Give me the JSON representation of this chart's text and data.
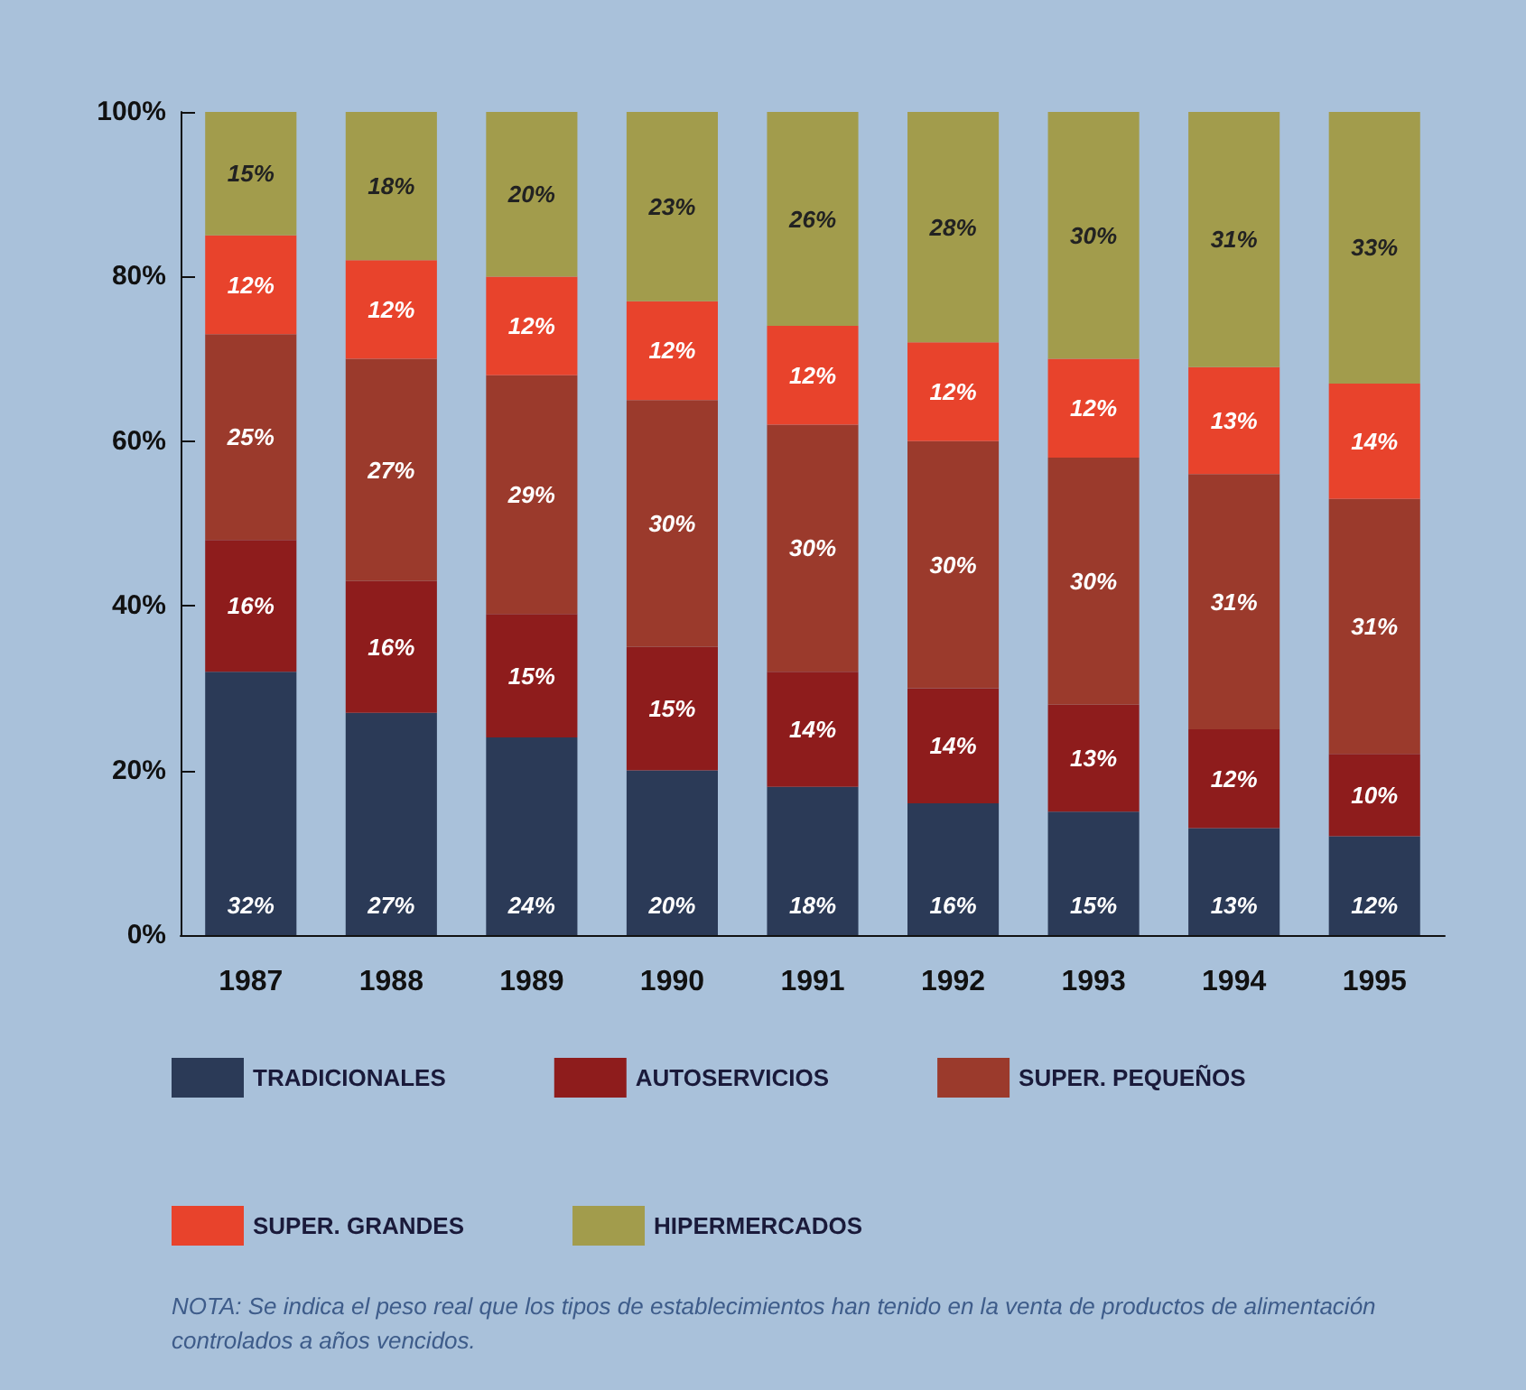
{
  "chart_data": {
    "type": "bar",
    "stacked": true,
    "categories": [
      "1987",
      "1988",
      "1989",
      "1990",
      "1991",
      "1992",
      "1993",
      "1994",
      "1995"
    ],
    "ylim": [
      0,
      100
    ],
    "yticks": [
      {
        "value": 0,
        "label": "0%"
      },
      {
        "value": 20,
        "label": "20%"
      },
      {
        "value": 40,
        "label": "40%"
      },
      {
        "value": 60,
        "label": "60%"
      },
      {
        "value": 80,
        "label": "80%"
      },
      {
        "value": 100,
        "label": "100%"
      }
    ],
    "grid": false,
    "legend": "bottom",
    "series": [
      {
        "name": "TRADICIONALES",
        "color": "#2b3a57",
        "values": [
          32,
          27,
          24,
          20,
          18,
          16,
          15,
          13,
          12
        ],
        "value_labels": [
          "32%",
          "27%",
          "24%",
          "20%",
          "18%",
          "16%",
          "15%",
          "13%",
          "12%"
        ]
      },
      {
        "name": "AUTOSERVICIOS",
        "color": "#8e1c1c",
        "values": [
          16,
          16,
          15,
          15,
          14,
          14,
          13,
          12,
          10
        ],
        "value_labels": [
          "16%",
          "16%",
          "15%",
          "15%",
          "14%",
          "14%",
          "13%",
          "12%",
          "10%"
        ]
      },
      {
        "name": "SUPER. PEQUEÑOS",
        "color": "#9b3a2c",
        "values": [
          25,
          27,
          29,
          30,
          30,
          30,
          30,
          31,
          31
        ],
        "value_labels": [
          "25%",
          "27%",
          "29%",
          "30%",
          "30%",
          "30%",
          "30%",
          "31%",
          "31%"
        ]
      },
      {
        "name": "SUPER. GRANDES",
        "color": "#e8432c",
        "values": [
          12,
          12,
          12,
          12,
          12,
          12,
          12,
          13,
          14
        ],
        "value_labels": [
          "12%",
          "12%",
          "12%",
          "12%",
          "12%",
          "12%",
          "12%",
          "13%",
          "14%"
        ]
      },
      {
        "name": "HIPERMERCADOS",
        "color": "#a29c4c",
        "values": [
          15,
          18,
          20,
          23,
          26,
          28,
          30,
          31,
          33
        ],
        "value_labels": [
          "15%",
          "18%",
          "20%",
          "23%",
          "26%",
          "28%",
          "30%",
          "31%",
          "33%"
        ]
      }
    ],
    "annotations": [
      "NOTA: Se indica el peso real que los tipos de establecimientos han tenido en la venta de productos de alimentación controlados a años vencidos."
    ]
  }
}
